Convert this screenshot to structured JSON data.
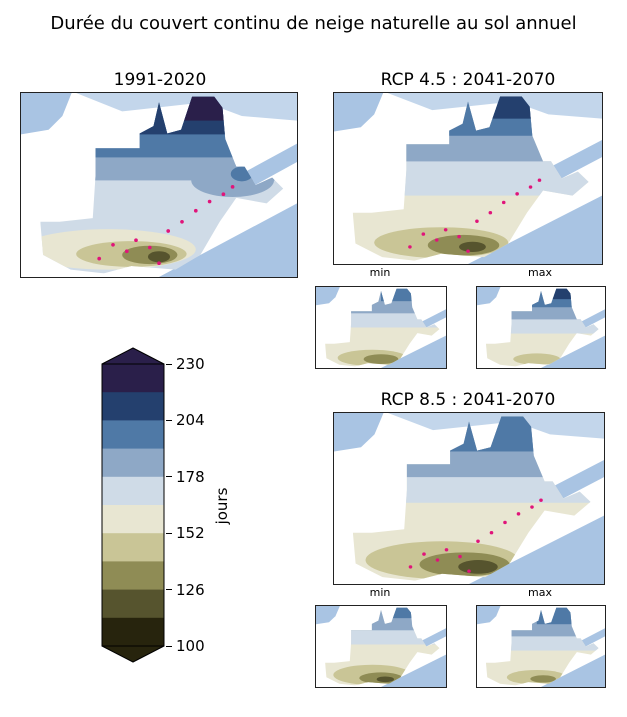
{
  "figure": {
    "title": "Durée du couvert continu de neige naturelle au sol annuel"
  },
  "panels": {
    "historical": {
      "title": "1991-2020"
    },
    "rcp45": {
      "title": "RCP 4.5 : 2041-2070",
      "min_label": "min",
      "max_label": "max"
    },
    "rcp85": {
      "title": "RCP 8.5 : 2041-2070",
      "min_label": "min",
      "max_label": "max"
    }
  },
  "colorbar": {
    "unit": "jours",
    "ticks": [
      "230",
      "204",
      "178",
      "152",
      "126",
      "100"
    ],
    "colors": [
      "#2a1f4a",
      "#24406e",
      "#4f79a6",
      "#8ea8c6",
      "#cfdbe7",
      "#e8e6d2",
      "#c9c596",
      "#8f8c55",
      "#56542e",
      "#27240d"
    ]
  },
  "map_colors": {
    "water": "#a9c4e3",
    "land": "#ffffff",
    "border": "#b0b0b0",
    "station": "#e0147a"
  }
}
